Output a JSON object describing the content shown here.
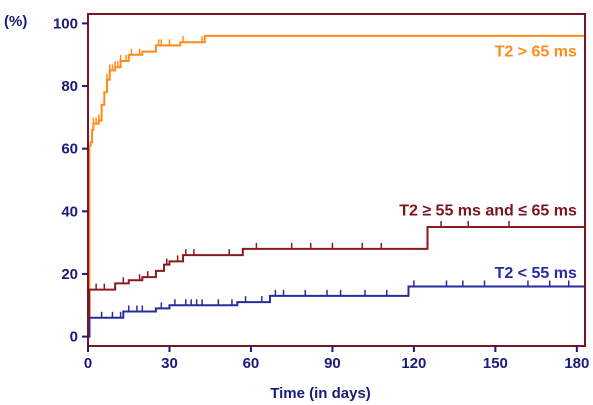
{
  "chart_data": {
    "type": "line",
    "step": true,
    "title": "",
    "xlabel": "Time (in days)",
    "ylabel_unit": "(%)",
    "xlim": [
      0,
      183
    ],
    "ylim": [
      -3,
      103
    ],
    "x_ticks": [
      0,
      30,
      60,
      90,
      120,
      150,
      180
    ],
    "y_ticks": [
      0,
      20,
      40,
      60,
      80,
      100
    ],
    "grid": false,
    "colors": {
      "axis": "#1a1a7a",
      "text": "#1a1a7a",
      "frame": "#7a1520"
    },
    "series": [
      {
        "name": "T2 > 65 ms",
        "color": "#ff8c1a",
        "label_color": "#ff8c1a",
        "points": [
          [
            0,
            0
          ],
          [
            0.5,
            61
          ],
          [
            1,
            62
          ],
          [
            1.5,
            66
          ],
          [
            2,
            68
          ],
          [
            3,
            68
          ],
          [
            4,
            69
          ],
          [
            5,
            74
          ],
          [
            6,
            78
          ],
          [
            7,
            82
          ],
          [
            8,
            85
          ],
          [
            10,
            86
          ],
          [
            12,
            88
          ],
          [
            15,
            90
          ],
          [
            20,
            91
          ],
          [
            25,
            93
          ],
          [
            30,
            93
          ],
          [
            34,
            94
          ],
          [
            43,
            96
          ],
          [
            183,
            96
          ]
        ],
        "censor": [
          2,
          3,
          4,
          7,
          8,
          9,
          10,
          11,
          12,
          14,
          16,
          19,
          26,
          27,
          30,
          35,
          42
        ]
      },
      {
        "name": "T2 ≥ 55 ms and ≤ 65 ms",
        "color": "#8b1a1a",
        "label_color": "#7a1520",
        "points": [
          [
            0,
            0
          ],
          [
            0.5,
            15
          ],
          [
            8,
            15
          ],
          [
            10,
            17
          ],
          [
            15,
            18
          ],
          [
            20,
            19
          ],
          [
            25,
            21
          ],
          [
            28,
            23
          ],
          [
            30,
            24
          ],
          [
            35,
            26
          ],
          [
            57,
            28
          ],
          [
            118,
            28
          ],
          [
            125,
            35
          ],
          [
            183,
            35
          ]
        ],
        "censor": [
          3,
          6,
          13,
          19,
          22,
          29,
          33,
          36,
          39,
          52,
          62,
          75,
          82,
          90,
          101,
          108,
          130,
          140,
          155
        ]
      },
      {
        "name": "T2 < 55 ms",
        "color": "#2a2aa0",
        "label_color": "#2a2aa0",
        "points": [
          [
            0,
            0
          ],
          [
            0.5,
            6
          ],
          [
            12,
            6
          ],
          [
            13,
            8
          ],
          [
            22,
            8
          ],
          [
            25,
            9
          ],
          [
            30,
            10
          ],
          [
            45,
            10
          ],
          [
            55,
            11
          ],
          [
            67,
            13
          ],
          [
            117,
            13
          ],
          [
            118,
            16
          ],
          [
            183,
            16
          ]
        ],
        "censor": [
          5,
          9,
          12,
          15,
          18,
          20,
          27,
          32,
          36,
          38,
          40,
          42,
          48,
          53,
          58,
          64,
          69,
          72,
          80,
          88,
          93,
          102,
          110,
          120,
          132,
          138,
          146,
          162,
          170,
          177
        ]
      }
    ]
  }
}
